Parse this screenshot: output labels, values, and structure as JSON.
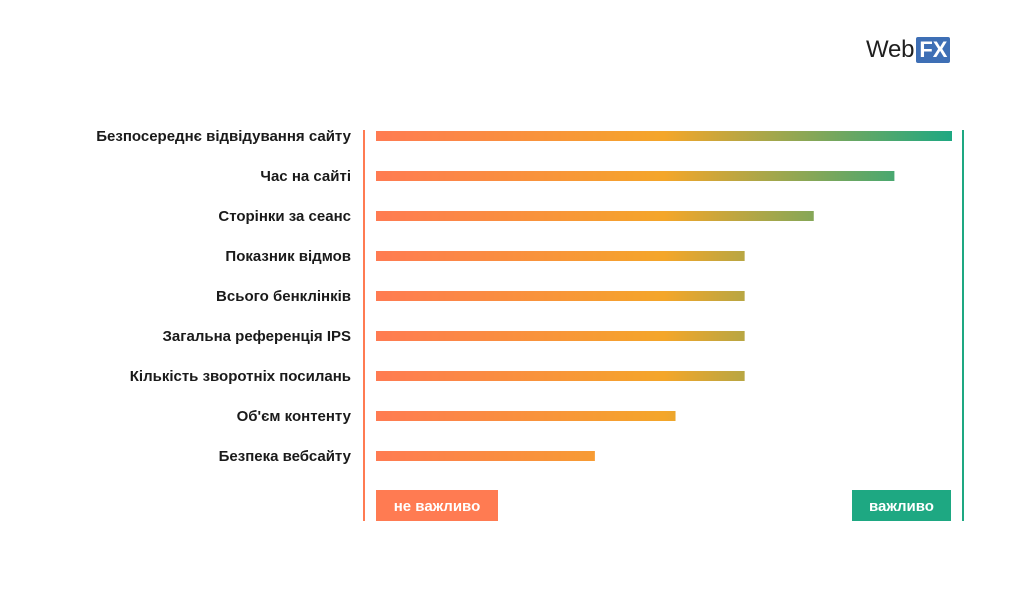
{
  "logo": {
    "text": "Web",
    "box_text": "FX"
  },
  "chart_data": {
    "type": "bar",
    "orientation": "horizontal",
    "categories": [
      "Безпосереднє відвідування сайту",
      "Час на сайті",
      "Сторінки за сеанс",
      "Показник відмов",
      "Всього бенклінків",
      "Загальна референція IPS",
      "Кількість зворотніх посилань",
      "Об'єм контенту",
      "Безпека вебсайту"
    ],
    "values": [
      100,
      90,
      76,
      64,
      64,
      64,
      64,
      52,
      38
    ],
    "xlim": [
      0,
      100
    ],
    "grid": false,
    "axis_labels": {
      "low": "не важливо",
      "high": "важливо"
    },
    "colors": {
      "gradient_start": "#ff7b52",
      "gradient_mid": "#f4a62a",
      "gradient_end": "#1ea882",
      "low_axis": "#ff7b52",
      "high_axis": "#1ea882"
    }
  }
}
